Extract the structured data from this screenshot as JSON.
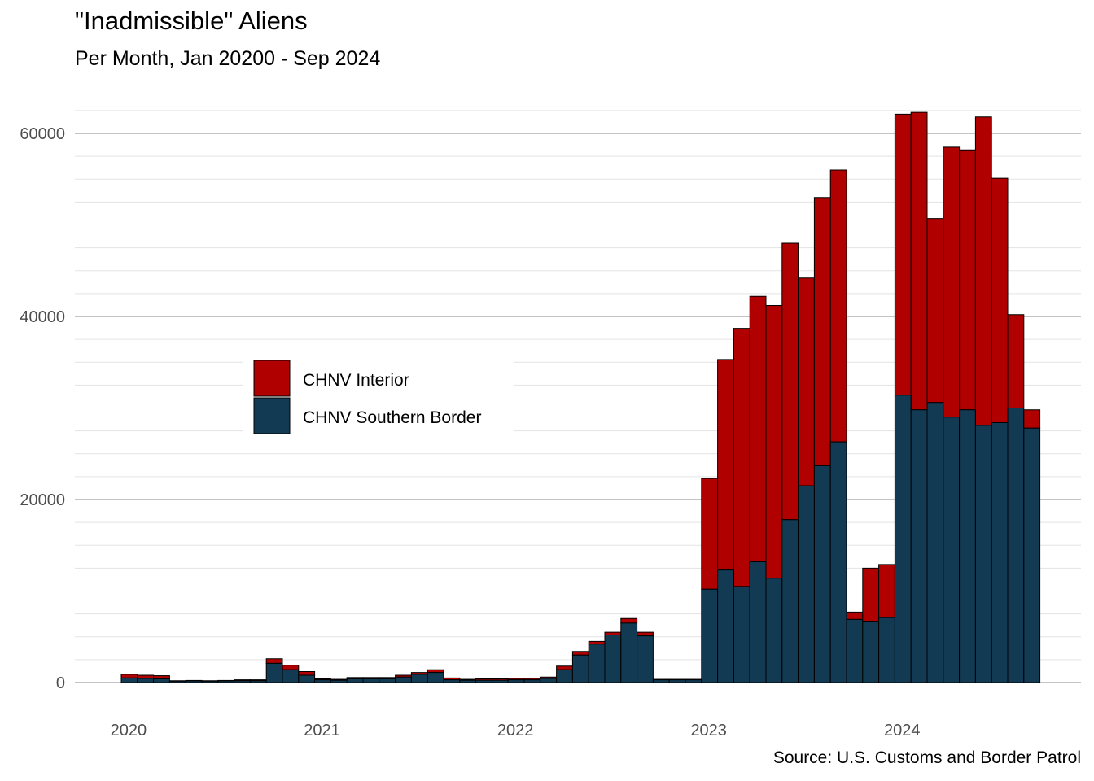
{
  "title": "\"Inadmissible\" Aliens",
  "subtitle": "Per Month, Jan 20200 - Sep 2024",
  "source": "Source: U.S. Customs and Border Patrol",
  "colors": {
    "interior": "#b00000",
    "southern_border": "#133a53",
    "outline": "#000000"
  },
  "chart_data": {
    "type": "bar",
    "stacked": true,
    "x_tick_labels": [
      "2020",
      "2021",
      "2022",
      "2023",
      "2024"
    ],
    "y_tick_labels": [
      "0",
      "20000",
      "40000",
      "60000"
    ],
    "ylim": [
      0,
      64000
    ],
    "grid": true,
    "legend_position": "left-center",
    "categories": [
      "2020-01",
      "2020-02",
      "2020-03",
      "2020-04",
      "2020-05",
      "2020-06",
      "2020-07",
      "2020-08",
      "2020-09",
      "2020-10",
      "2020-11",
      "2020-12",
      "2021-01",
      "2021-02",
      "2021-03",
      "2021-04",
      "2021-05",
      "2021-06",
      "2021-07",
      "2021-08",
      "2021-09",
      "2021-10",
      "2021-11",
      "2021-12",
      "2022-01",
      "2022-02",
      "2022-03",
      "2022-04",
      "2022-05",
      "2022-06",
      "2022-07",
      "2022-08",
      "2022-09",
      "2022-10",
      "2022-11",
      "2022-12",
      "2023-01",
      "2023-02",
      "2023-03",
      "2023-04",
      "2023-05",
      "2023-06",
      "2023-07",
      "2023-08",
      "2023-09",
      "2023-10",
      "2023-11",
      "2023-12",
      "2024-01",
      "2024-02",
      "2024-03",
      "2024-04",
      "2024-05",
      "2024-06",
      "2024-07",
      "2024-08",
      "2024-09"
    ],
    "series": [
      {
        "name": "CHNV Southern Border",
        "values": [
          500,
          450,
          400,
          150,
          180,
          150,
          180,
          200,
          200,
          2100,
          1400,
          800,
          300,
          250,
          400,
          400,
          400,
          600,
          900,
          1100,
          300,
          250,
          250,
          250,
          300,
          300,
          450,
          1400,
          3000,
          4200,
          5200,
          6500,
          5100,
          300,
          300,
          300,
          10200,
          12300,
          10500,
          13200,
          11400,
          17800,
          21500,
          23700,
          26300,
          6900,
          6700,
          7100,
          31400,
          29800,
          30600,
          29000,
          29800,
          28100,
          28400,
          30000,
          27800
        ]
      },
      {
        "name": "CHNV Interior",
        "values": [
          400,
          350,
          350,
          50,
          50,
          50,
          50,
          100,
          100,
          500,
          500,
          400,
          100,
          100,
          150,
          150,
          150,
          200,
          200,
          300,
          200,
          100,
          150,
          150,
          150,
          150,
          150,
          400,
          400,
          300,
          300,
          500,
          400,
          50,
          50,
          50,
          12100,
          23000,
          28200,
          29000,
          29800,
          30200,
          22700,
          29300,
          29700,
          800,
          5800,
          5800,
          30700,
          32500,
          20100,
          29500,
          28400,
          33700,
          26700,
          10200,
          2000
        ]
      }
    ]
  }
}
